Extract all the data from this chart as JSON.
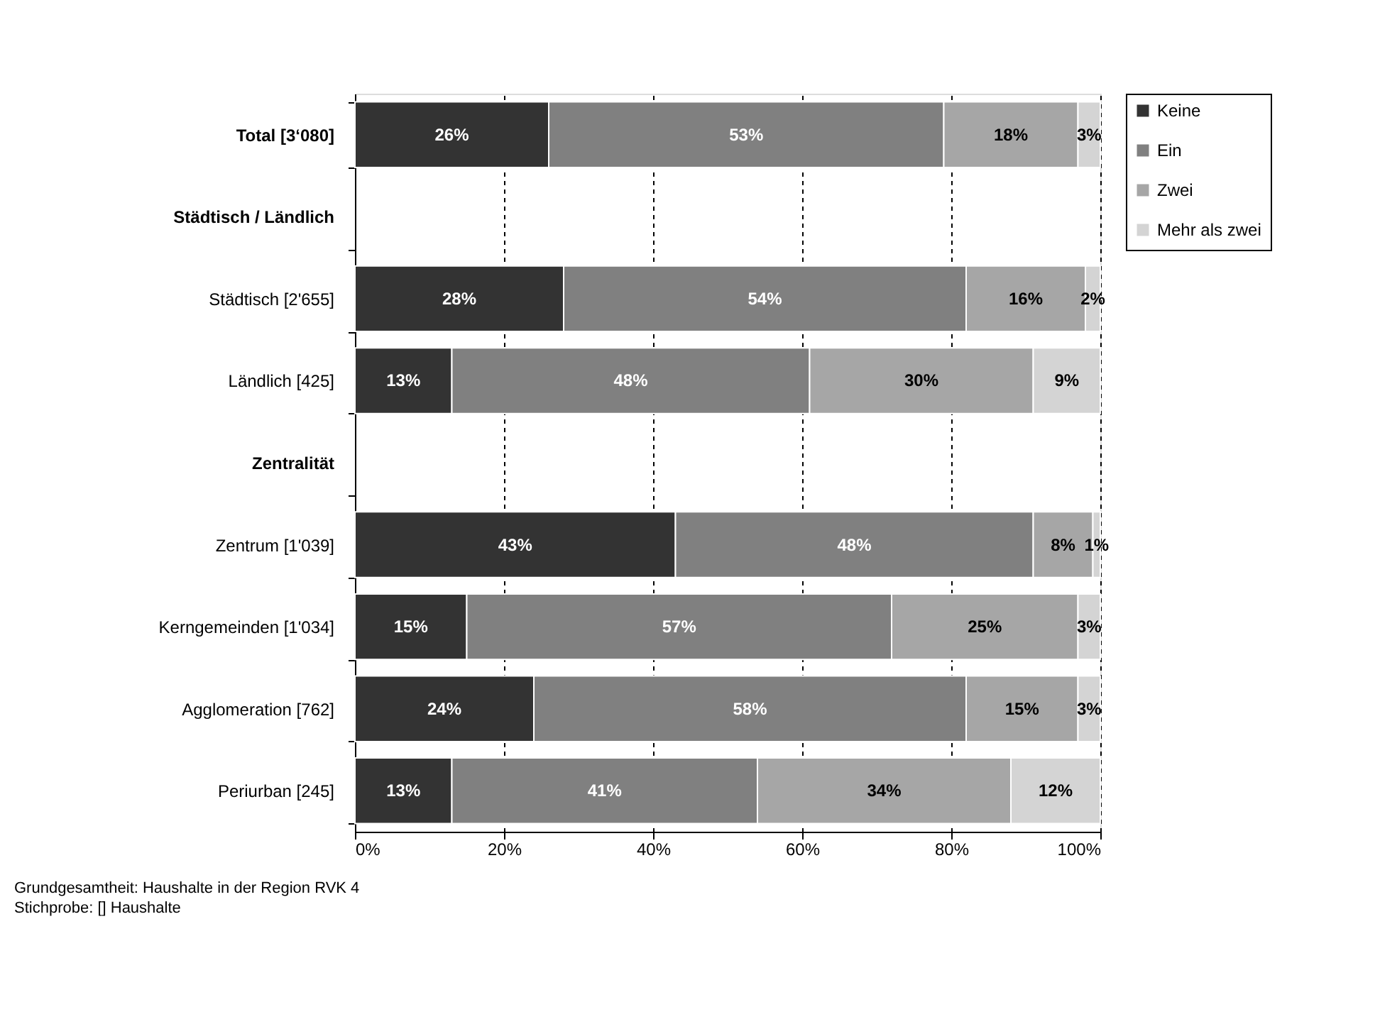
{
  "chart_data": {
    "type": "bar",
    "orientation": "horizontal",
    "stacked": true,
    "categories": [
      "Total [3‘080]",
      "Städtisch / Ländlich",
      "Städtisch [2'655]",
      "Ländlich [425]",
      "Zentralität",
      "Zentrum [1'039]",
      "Kerngemeinden [1'034]",
      "Agglomeration [762]",
      "Periurban [245]"
    ],
    "series": [
      {
        "name": "Keine",
        "color": "#333333",
        "values": [
          26,
          null,
          28,
          13,
          null,
          43,
          15,
          24,
          13
        ],
        "value_labels": [
          "26%",
          null,
          "28%",
          "13%",
          null,
          "43%",
          "15%",
          "24%",
          "13%"
        ]
      },
      {
        "name": "Ein",
        "color": "#808080",
        "values": [
          53,
          null,
          54,
          48,
          null,
          48,
          57,
          58,
          41
        ],
        "value_labels": [
          "53%",
          null,
          "54%",
          "48%",
          null,
          "48%",
          "57%",
          "58%",
          "41%"
        ]
      },
      {
        "name": "Zwei",
        "color": "#a6a6a6",
        "values": [
          18,
          null,
          16,
          30,
          null,
          8,
          25,
          15,
          34
        ],
        "value_labels": [
          "18%",
          null,
          "16%",
          "30%",
          null,
          "8%",
          "25%",
          "15%",
          "34%"
        ]
      },
      {
        "name": "Mehr als zwei",
        "color": "#d4d4d4",
        "values": [
          3,
          null,
          2,
          9,
          null,
          1,
          3,
          3,
          12
        ],
        "value_labels": [
          "3%",
          null,
          "2%",
          "9%",
          null,
          "1%",
          "3%",
          "3%",
          "12%"
        ]
      }
    ],
    "xlim": [
      0,
      100
    ],
    "xticks": [
      {
        "value": 0,
        "label": "0%"
      },
      {
        "value": 20,
        "label": "20%"
      },
      {
        "value": 40,
        "label": "40%"
      },
      {
        "value": 60,
        "label": "60%"
      },
      {
        "value": 80,
        "label": "80%"
      },
      {
        "value": 100,
        "label": "100%"
      }
    ],
    "grid": "x",
    "legend": "right",
    "annotations": [
      "Grundgesamtheit:  Haushalte in der Region RVK 4",
      "Stichprobe:  [] Haushalte"
    ]
  }
}
